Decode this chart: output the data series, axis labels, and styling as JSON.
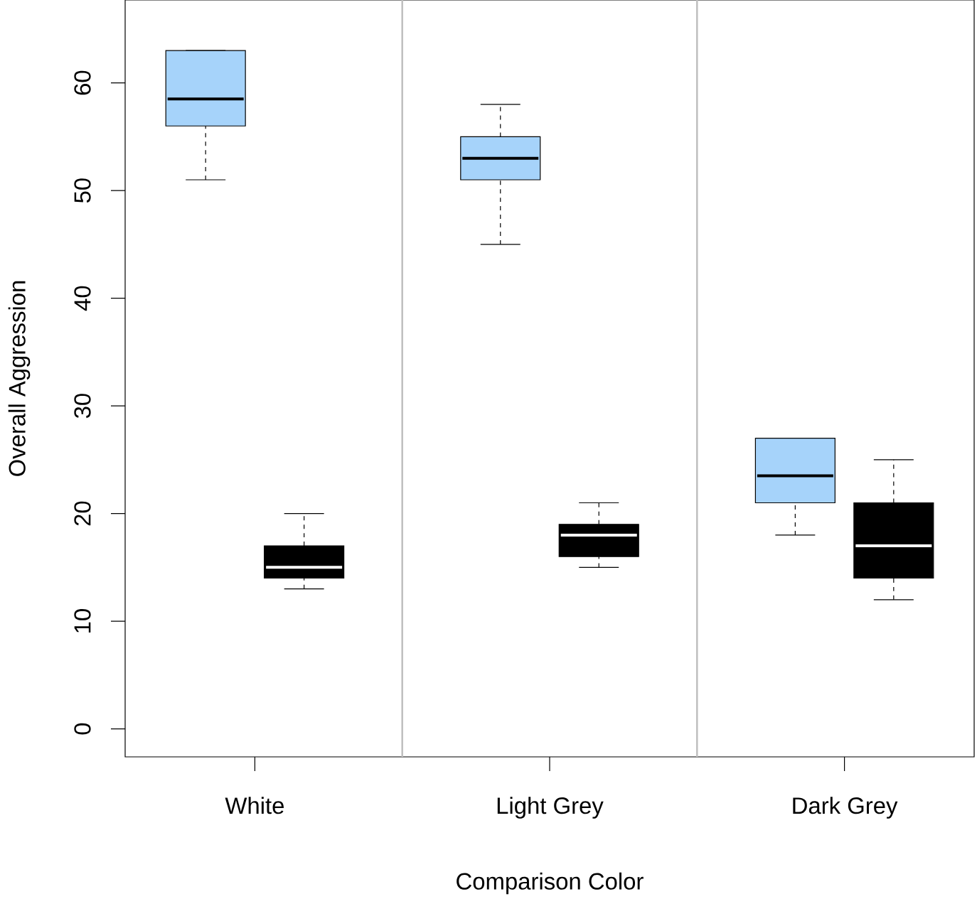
{
  "chart_data": {
    "type": "box",
    "xlabel": "Comparison Color",
    "ylabel": "Overall Aggression",
    "categories": [
      "White",
      "Light Grey",
      "Dark Grey"
    ],
    "series": [
      {
        "color": "#a6d3fa",
        "boxes": [
          {
            "low": 51,
            "q1": 56,
            "median": 58.5,
            "q3": 63,
            "high": 63
          },
          {
            "low": 45,
            "q1": 51,
            "median": 53,
            "q3": 55,
            "high": 58
          },
          {
            "low": 18,
            "q1": 21,
            "median": 23.5,
            "q3": 27,
            "high": 27
          }
        ]
      },
      {
        "color": "#000000",
        "boxes": [
          {
            "low": 13,
            "q1": 14,
            "median": 15,
            "q3": 17,
            "high": 20
          },
          {
            "low": 15,
            "q1": 16,
            "median": 18,
            "q3": 19,
            "high": 21
          },
          {
            "low": 12,
            "q1": 14,
            "median": 17,
            "q3": 21,
            "high": 25
          }
        ]
      }
    ],
    "ylim": [
      -2.6,
      67.7
    ],
    "yticks": [
      0,
      10,
      20,
      30,
      40,
      50,
      60
    ],
    "grid": false
  }
}
